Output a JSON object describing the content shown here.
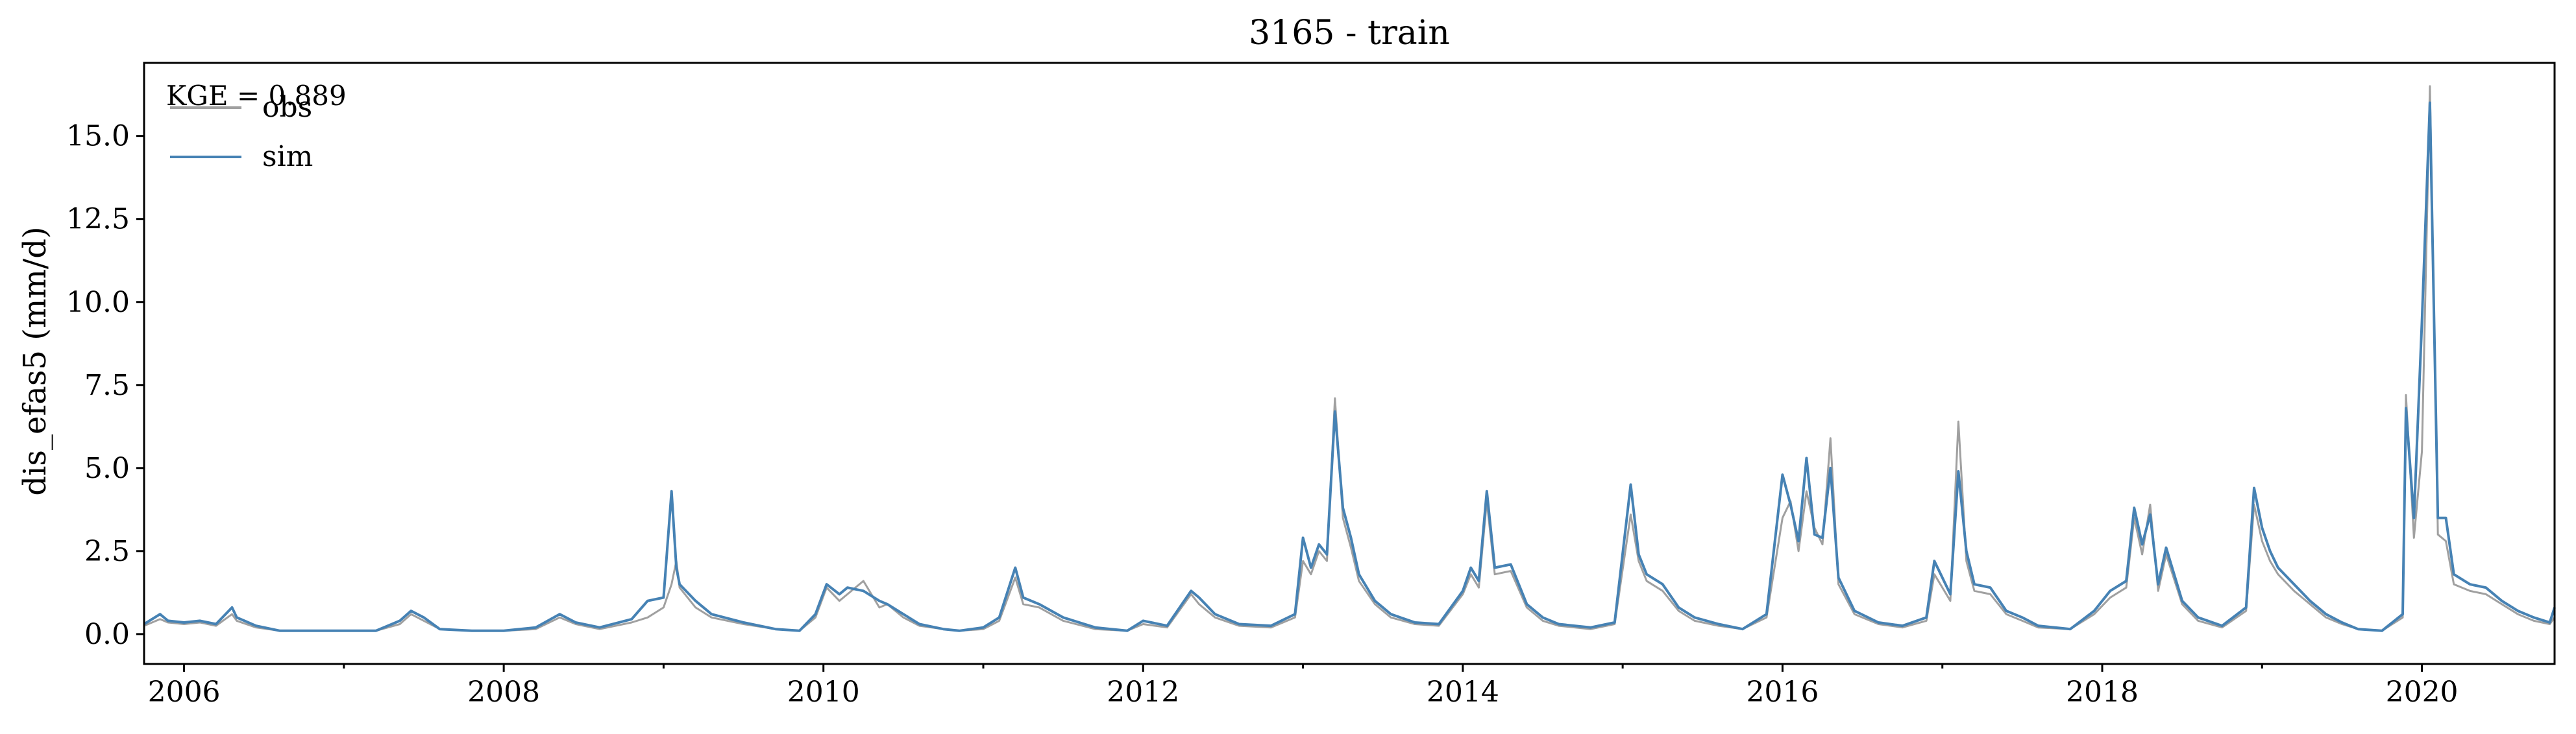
{
  "chart_data": {
    "type": "line",
    "title": "3165 - train",
    "ylabel": "dis_efas5 (mm/d)",
    "xlabel": "",
    "annotation": "KGE = 0.889",
    "legend": {
      "placement": "top-left",
      "entries": [
        "obs",
        "sim"
      ]
    },
    "xlim": [
      2005.75,
      2020.83
    ],
    "ylim": [
      -0.9,
      17.2
    ],
    "x_ticks": [
      2006,
      2008,
      2010,
      2012,
      2014,
      2016,
      2018,
      2020
    ],
    "x_tick_labels": [
      "2006",
      "2008",
      "2010",
      "2012",
      "2014",
      "2016",
      "2018",
      "2020"
    ],
    "y_ticks": [
      0,
      2.5,
      5,
      7.5,
      10,
      12.5,
      15
    ],
    "y_tick_labels": [
      "0.0",
      "2.5",
      "5.0",
      "7.5",
      "10.0",
      "12.5",
      "15.0"
    ],
    "grid": false,
    "colors": {
      "obs": "#a0a0a0",
      "sim": "#4682b4"
    },
    "series": [
      {
        "name": "obs",
        "x": [
          2005.75,
          2005.85,
          2005.9,
          2006.0,
          2006.1,
          2006.2,
          2006.3,
          2006.33,
          2006.45,
          2006.6,
          2006.8,
          2007.0,
          2007.2,
          2007.35,
          2007.42,
          2007.5,
          2007.6,
          2007.8,
          2008.0,
          2008.2,
          2008.35,
          2008.45,
          2008.6,
          2008.8,
          2008.9,
          2009.0,
          2009.05,
          2009.08,
          2009.1,
          2009.2,
          2009.3,
          2009.5,
          2009.7,
          2009.85,
          2009.95,
          2010.02,
          2010.1,
          2010.15,
          2010.25,
          2010.35,
          2010.4,
          2010.5,
          2010.6,
          2010.75,
          2010.85,
          2011.0,
          2011.1,
          2011.2,
          2011.25,
          2011.35,
          2011.5,
          2011.7,
          2011.9,
          2012.0,
          2012.15,
          2012.3,
          2012.35,
          2012.45,
          2012.6,
          2012.8,
          2012.95,
          2013.0,
          2013.05,
          2013.1,
          2013.15,
          2013.2,
          2013.25,
          2013.3,
          2013.35,
          2013.45,
          2013.55,
          2013.7,
          2013.85,
          2014.0,
          2014.05,
          2014.1,
          2014.15,
          2014.2,
          2014.3,
          2014.4,
          2014.5,
          2014.6,
          2014.8,
          2014.95,
          2015.05,
          2015.1,
          2015.15,
          2015.25,
          2015.35,
          2015.45,
          2015.6,
          2015.75,
          2015.9,
          2016.0,
          2016.05,
          2016.1,
          2016.15,
          2016.2,
          2016.25,
          2016.3,
          2016.35,
          2016.45,
          2016.6,
          2016.75,
          2016.9,
          2016.95,
          2017.05,
          2017.1,
          2017.15,
          2017.2,
          2017.3,
          2017.4,
          2017.5,
          2017.6,
          2017.8,
          2017.95,
          2018.05,
          2018.15,
          2018.2,
          2018.25,
          2018.3,
          2018.35,
          2018.4,
          2018.5,
          2018.6,
          2018.75,
          2018.9,
          2018.95,
          2019.0,
          2019.05,
          2019.1,
          2019.2,
          2019.3,
          2019.4,
          2019.5,
          2019.6,
          2019.75,
          2019.88,
          2019.9,
          2019.95,
          2020.0,
          2020.05,
          2020.1,
          2020.15,
          2020.2,
          2020.3,
          2020.4,
          2020.5,
          2020.6,
          2020.7,
          2020.8,
          2020.83
        ],
        "y": [
          0.25,
          0.45,
          0.35,
          0.3,
          0.35,
          0.25,
          0.6,
          0.4,
          0.2,
          0.1,
          0.1,
          0.1,
          0.1,
          0.3,
          0.6,
          0.4,
          0.15,
          0.1,
          0.1,
          0.15,
          0.5,
          0.3,
          0.15,
          0.35,
          0.5,
          0.8,
          1.5,
          2.2,
          1.4,
          0.8,
          0.5,
          0.3,
          0.15,
          0.1,
          0.5,
          1.4,
          1.0,
          1.2,
          1.6,
          0.8,
          0.9,
          0.5,
          0.25,
          0.15,
          0.1,
          0.15,
          0.4,
          1.7,
          0.9,
          0.8,
          0.4,
          0.15,
          0.1,
          0.3,
          0.2,
          1.2,
          0.9,
          0.5,
          0.25,
          0.2,
          0.5,
          2.2,
          1.8,
          2.5,
          2.2,
          7.1,
          3.5,
          2.6,
          1.6,
          0.9,
          0.5,
          0.3,
          0.25,
          1.2,
          1.8,
          1.4,
          4.0,
          1.8,
          1.9,
          0.8,
          0.4,
          0.25,
          0.15,
          0.3,
          3.6,
          2.2,
          1.6,
          1.3,
          0.7,
          0.4,
          0.25,
          0.15,
          0.5,
          3.5,
          4.0,
          2.5,
          4.3,
          3.2,
          2.7,
          5.9,
          1.5,
          0.6,
          0.3,
          0.2,
          0.4,
          1.8,
          1.0,
          6.4,
          2.2,
          1.3,
          1.2,
          0.6,
          0.4,
          0.2,
          0.15,
          0.6,
          1.1,
          1.4,
          3.5,
          2.4,
          3.9,
          1.3,
          2.4,
          0.9,
          0.4,
          0.2,
          0.7,
          3.9,
          2.8,
          2.2,
          1.8,
          1.3,
          0.9,
          0.5,
          0.3,
          0.15,
          0.1,
          0.5,
          7.2,
          2.9,
          5.5,
          16.5,
          3.0,
          2.8,
          1.5,
          1.3,
          1.2,
          0.9,
          0.6,
          0.4,
          0.3,
          0.5
        ]
      },
      {
        "name": "sim",
        "x": [
          2005.75,
          2005.85,
          2005.9,
          2006.0,
          2006.1,
          2006.2,
          2006.3,
          2006.33,
          2006.45,
          2006.6,
          2006.8,
          2007.0,
          2007.2,
          2007.35,
          2007.42,
          2007.5,
          2007.6,
          2007.8,
          2008.0,
          2008.2,
          2008.35,
          2008.45,
          2008.6,
          2008.8,
          2008.9,
          2009.0,
          2009.05,
          2009.08,
          2009.1,
          2009.2,
          2009.3,
          2009.5,
          2009.7,
          2009.85,
          2009.95,
          2010.02,
          2010.1,
          2010.15,
          2010.25,
          2010.35,
          2010.4,
          2010.5,
          2010.6,
          2010.75,
          2010.85,
          2011.0,
          2011.1,
          2011.2,
          2011.25,
          2011.35,
          2011.5,
          2011.7,
          2011.9,
          2012.0,
          2012.15,
          2012.3,
          2012.35,
          2012.45,
          2012.6,
          2012.8,
          2012.95,
          2013.0,
          2013.05,
          2013.1,
          2013.15,
          2013.2,
          2013.25,
          2013.3,
          2013.35,
          2013.45,
          2013.55,
          2013.7,
          2013.85,
          2014.0,
          2014.05,
          2014.1,
          2014.15,
          2014.2,
          2014.3,
          2014.4,
          2014.5,
          2014.6,
          2014.8,
          2014.95,
          2015.05,
          2015.1,
          2015.15,
          2015.25,
          2015.35,
          2015.45,
          2015.6,
          2015.75,
          2015.9,
          2016.0,
          2016.05,
          2016.1,
          2016.15,
          2016.2,
          2016.25,
          2016.3,
          2016.35,
          2016.45,
          2016.6,
          2016.75,
          2016.9,
          2016.95,
          2017.05,
          2017.1,
          2017.15,
          2017.2,
          2017.3,
          2017.4,
          2017.5,
          2017.6,
          2017.8,
          2017.95,
          2018.05,
          2018.15,
          2018.2,
          2018.25,
          2018.3,
          2018.35,
          2018.4,
          2018.5,
          2018.6,
          2018.75,
          2018.9,
          2018.95,
          2019.0,
          2019.05,
          2019.1,
          2019.2,
          2019.3,
          2019.4,
          2019.5,
          2019.6,
          2019.75,
          2019.88,
          2019.9,
          2019.95,
          2020.0,
          2020.05,
          2020.1,
          2020.15,
          2020.2,
          2020.3,
          2020.4,
          2020.5,
          2020.6,
          2020.7,
          2020.8,
          2020.83
        ],
        "y": [
          0.3,
          0.6,
          0.4,
          0.35,
          0.4,
          0.3,
          0.8,
          0.5,
          0.25,
          0.1,
          0.1,
          0.1,
          0.1,
          0.4,
          0.7,
          0.5,
          0.15,
          0.1,
          0.1,
          0.2,
          0.6,
          0.35,
          0.2,
          0.45,
          1.0,
          1.1,
          4.3,
          2.0,
          1.5,
          1.0,
          0.6,
          0.35,
          0.15,
          0.1,
          0.6,
          1.5,
          1.2,
          1.4,
          1.3,
          1.0,
          0.9,
          0.6,
          0.3,
          0.15,
          0.1,
          0.2,
          0.5,
          2.0,
          1.1,
          0.9,
          0.5,
          0.2,
          0.1,
          0.4,
          0.25,
          1.3,
          1.1,
          0.6,
          0.3,
          0.25,
          0.6,
          2.9,
          2.0,
          2.7,
          2.4,
          6.7,
          3.8,
          2.9,
          1.8,
          1.0,
          0.6,
          0.35,
          0.3,
          1.3,
          2.0,
          1.6,
          4.3,
          2.0,
          2.1,
          0.9,
          0.5,
          0.3,
          0.2,
          0.35,
          4.5,
          2.4,
          1.8,
          1.5,
          0.8,
          0.5,
          0.3,
          0.15,
          0.6,
          4.8,
          3.9,
          2.8,
          5.3,
          3.0,
          2.9,
          5.0,
          1.7,
          0.7,
          0.35,
          0.25,
          0.5,
          2.2,
          1.2,
          4.9,
          2.5,
          1.5,
          1.4,
          0.7,
          0.5,
          0.25,
          0.15,
          0.7,
          1.3,
          1.6,
          3.8,
          2.7,
          3.6,
          1.5,
          2.6,
          1.0,
          0.5,
          0.25,
          0.8,
          4.4,
          3.2,
          2.5,
          2.0,
          1.5,
          1.0,
          0.6,
          0.35,
          0.15,
          0.1,
          0.6,
          6.8,
          3.5,
          9.4,
          16.0,
          3.5,
          3.5,
          1.8,
          1.5,
          1.4,
          1.0,
          0.7,
          0.5,
          0.35,
          0.8
        ]
      }
    ]
  }
}
